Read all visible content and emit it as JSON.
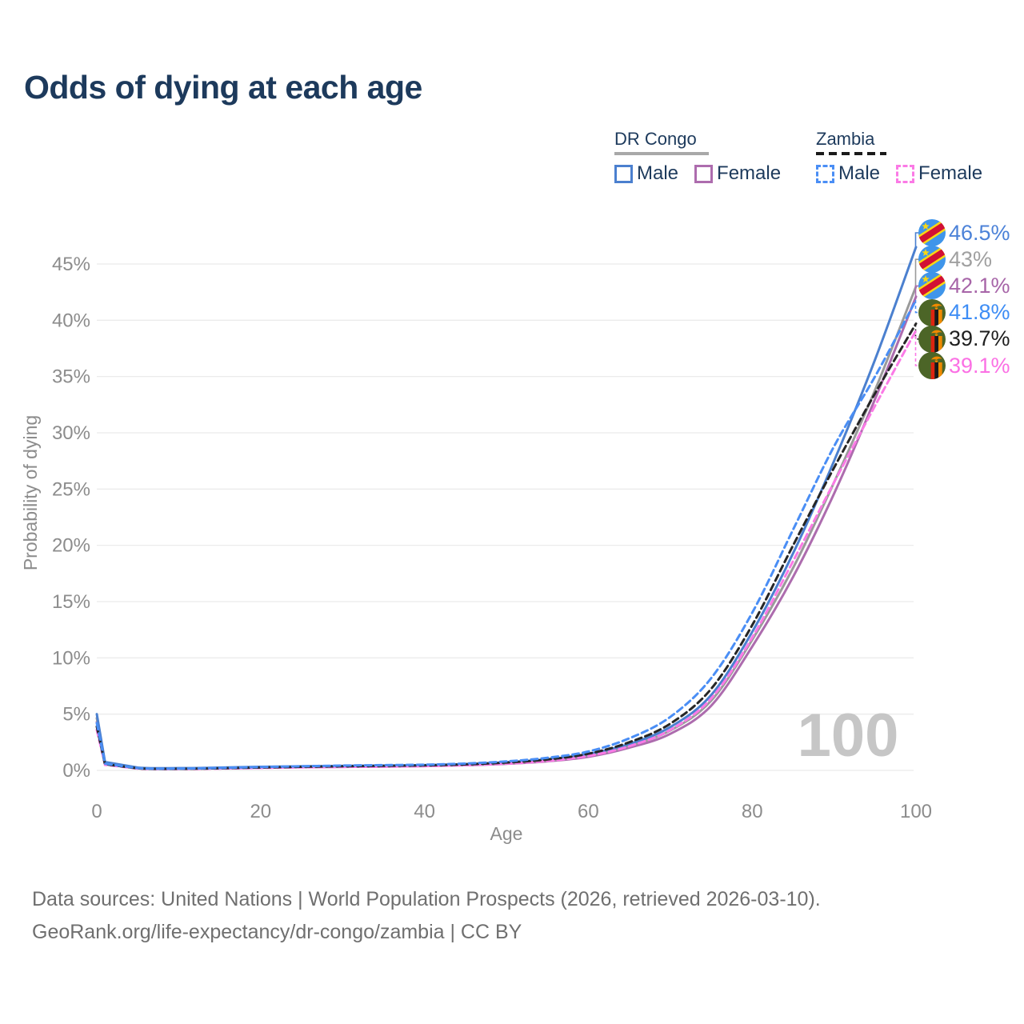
{
  "title": "Odds of dying at each age",
  "watermark": "100",
  "colors": {
    "title_text": "#1d3a5c",
    "axis_text": "#8c8c8c",
    "gridline": "#ebebeb",
    "watermark": "#c6c6c6",
    "footer_text": "#6f6f6f"
  },
  "legend": {
    "groups": [
      {
        "label": "DR Congo",
        "line_style": "solid",
        "underline_color": "#a8a8a8",
        "items": [
          {
            "label": "Male",
            "color": "#4b80cf"
          },
          {
            "label": "Female",
            "color": "#ad6cae"
          }
        ]
      },
      {
        "label": "Zambia",
        "line_style": "dashed",
        "underline_color": "#1a1a1a",
        "items": [
          {
            "label": "Male",
            "color": "#4a8ef5"
          },
          {
            "label": "Female",
            "color": "#fb7ae6"
          }
        ]
      }
    ]
  },
  "chart_data": {
    "type": "line",
    "title": "Odds of dying at each age",
    "xlabel": "Age",
    "ylabel": "Probability of dying",
    "xlim": [
      0,
      100
    ],
    "ylim": [
      0,
      48
    ],
    "x_ticks": [
      0,
      20,
      40,
      60,
      80,
      100
    ],
    "y_ticks": [
      0,
      5,
      10,
      15,
      20,
      25,
      30,
      35,
      40,
      45
    ],
    "y_tick_suffix": "%",
    "grid": "horizontal",
    "legend_position": "top-right",
    "hover_age_readout": "100",
    "ages": [
      0,
      1,
      5,
      10,
      15,
      20,
      25,
      30,
      35,
      40,
      45,
      50,
      55,
      60,
      65,
      70,
      75,
      80,
      85,
      90,
      95,
      100
    ],
    "series": [
      {
        "id": "dr_male",
        "country": "DR Congo",
        "sex": "Male",
        "color": "#4b80cf",
        "dash": "solid",
        "values": [
          5.0,
          0.75,
          0.25,
          0.2,
          0.25,
          0.32,
          0.36,
          0.4,
          0.43,
          0.47,
          0.56,
          0.72,
          0.98,
          1.45,
          2.35,
          3.85,
          6.7,
          12.3,
          19.3,
          27.5,
          36.5,
          46.5
        ]
      },
      {
        "id": "dr_combined",
        "country": "DR Congo",
        "sex": "Both",
        "color": "#9a9a9a",
        "dash": "solid",
        "values": [
          4.65,
          0.7,
          0.23,
          0.18,
          0.22,
          0.28,
          0.32,
          0.35,
          0.38,
          0.42,
          0.51,
          0.65,
          0.89,
          1.32,
          2.18,
          3.55,
          6.2,
          11.6,
          18.0,
          25.6,
          33.8,
          43.0
        ]
      },
      {
        "id": "dr_female",
        "country": "DR Congo",
        "sex": "Female",
        "color": "#ad6cae",
        "dash": "solid",
        "values": [
          4.3,
          0.65,
          0.21,
          0.16,
          0.19,
          0.24,
          0.28,
          0.31,
          0.34,
          0.38,
          0.46,
          0.59,
          0.81,
          1.21,
          2.02,
          3.25,
          5.75,
          11.0,
          17.2,
          24.6,
          33.0,
          42.1
        ]
      },
      {
        "id": "zm_male",
        "country": "Zambia",
        "sex": "Male",
        "color": "#4a8ef5",
        "dash": "dashed",
        "values": [
          4.2,
          0.6,
          0.2,
          0.16,
          0.22,
          0.3,
          0.37,
          0.43,
          0.47,
          0.51,
          0.61,
          0.8,
          1.12,
          1.68,
          2.85,
          4.75,
          8.2,
          14.0,
          21.4,
          28.8,
          35.0,
          41.8
        ]
      },
      {
        "id": "zm_combined",
        "country": "Zambia",
        "sex": "Both",
        "color": "#262626",
        "dash": "dashed",
        "values": [
          3.9,
          0.55,
          0.18,
          0.14,
          0.19,
          0.26,
          0.32,
          0.37,
          0.41,
          0.45,
          0.54,
          0.7,
          0.97,
          1.48,
          2.5,
          4.15,
          7.25,
          12.9,
          20.0,
          26.9,
          33.5,
          39.7
        ]
      },
      {
        "id": "zm_female",
        "country": "Zambia",
        "sex": "Female",
        "color": "#fb7ae6",
        "dash": "dashed",
        "values": [
          3.6,
          0.5,
          0.16,
          0.12,
          0.16,
          0.22,
          0.27,
          0.31,
          0.34,
          0.38,
          0.47,
          0.6,
          0.84,
          1.28,
          2.15,
          3.6,
          6.4,
          11.8,
          18.6,
          25.6,
          32.4,
          39.1
        ]
      }
    ]
  },
  "end_labels": [
    {
      "series_id": "dr_male",
      "value": "46.5%",
      "flag": "dr-congo",
      "text_color": "#4c82d8"
    },
    {
      "series_id": "dr_combined",
      "value": "43%",
      "flag": "dr-congo",
      "text_color": "#a0a0a0"
    },
    {
      "series_id": "dr_female",
      "value": "42.1%",
      "flag": "dr-congo",
      "text_color": "#a765a8"
    },
    {
      "series_id": "zm_male",
      "value": "41.8%",
      "flag": "zambia",
      "text_color": "#3e8df5"
    },
    {
      "series_id": "zm_combined",
      "value": "39.7%",
      "flag": "zambia",
      "text_color": "#1f1f1f"
    },
    {
      "series_id": "zm_female",
      "value": "39.1%",
      "flag": "zambia",
      "text_color": "#fb70e4"
    }
  ],
  "footer": {
    "line1": "Data sources: United Nations | World Population Prospects (2026, retrieved 2026-03-10).",
    "line2": "GeoRank.org/life-expectancy/dr-congo/zambia | CC BY"
  }
}
